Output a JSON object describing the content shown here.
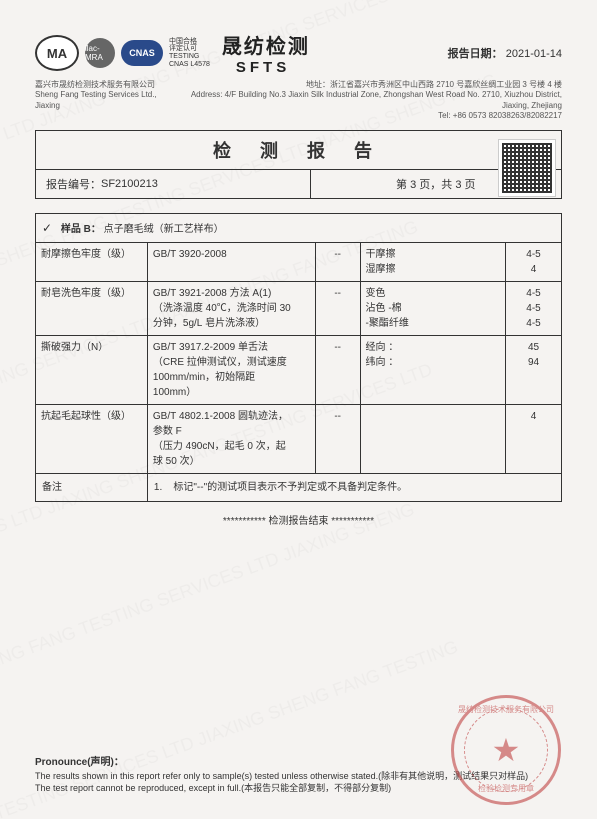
{
  "header": {
    "ma": "MA",
    "ilac": "ilac-MRA",
    "cnas": "CNAS",
    "cn_label_1": "中国合格",
    "cn_label_2": "评定认可",
    "cn_label_3": "TESTING",
    "cn_label_4": "CNAS L4578",
    "company_cn": "晟纺检测",
    "company_en": "SFTS",
    "date_label": "报告日期：",
    "date_value": "2021-01-14"
  },
  "address": {
    "left_cn": "嘉兴市晟纺检测技术服务有限公司",
    "left_en": "Sheng Fang Testing Services Ltd., Jiaxing",
    "mid": "地址：浙江省嘉兴市秀洲区中山西路 2710 号嘉欣丝绸工业园 3 号楼 4 楼",
    "mid_en": "Address: 4/F Building No.3 Jiaxin Silk Industrial Zone, Zhongshan West Road No. 2710, Xiuzhou District, Jiaxing, Zhejiang",
    "tel": "Tel: +86 0573 82038263/82082217"
  },
  "title": "检 测 报 告",
  "meta": {
    "report_no_label": "报告编号：",
    "report_no_value": "SF2100213",
    "page_info": "第 3 页，共 3 页"
  },
  "sample": {
    "check": "✓",
    "label": "样品 B：",
    "name": "点子磨毛绒（新工艺样布）"
  },
  "rows": [
    {
      "a": "耐摩擦色牢度（级）",
      "b": "GB/T 3920-2008",
      "c": "--",
      "d": "干摩擦\n湿摩擦",
      "e": "4-5\n4"
    },
    {
      "a": "耐皂洗色牢度（级）",
      "b": "GB/T 3921-2008 方法 A(1)\n（洗涤温度 40℃，洗涤时间 30\n分钟，5g/L 皂片洗涤液）",
      "c": "--",
      "d": "变色\n沾色 -棉\n-聚酯纤维",
      "e": "4-5\n4-5\n4-5"
    },
    {
      "a": "撕破强力（N）",
      "b": "GB/T 3917.2-2009 单舌法\n（CRE 拉伸测试仪，测试速度\n100mm/min，初始隔距\n100mm）",
      "c": "--",
      "d": "经向 ：\n纬向 ：",
      "e": "45\n94"
    },
    {
      "a": "抗起毛起球性（级）",
      "b": "GB/T 4802.1-2008 圆轨迹法，\n参数 F\n（压力 490cN，起毛 0 次，起\n球 50 次）",
      "c": "--",
      "d": "",
      "e": "4"
    }
  ],
  "remark": {
    "label": "备注",
    "num": "1.",
    "text": "标记\"--\"的测试项目表示不予判定或不具备判定条件。"
  },
  "end_line": "*********** 检测报告结束 ***********",
  "footer": {
    "title": "Pronounce(声明)：",
    "line1": "The results shown in this report refer only to sample(s) tested unless otherwise stated.(除非有其他说明，测试结果只对样品)",
    "line2": "The test report cannot be reproduced, except in full.(本报告只能全部复制，不得部分复制)"
  },
  "stamp": {
    "top": "晟纺检测技术服务有限公司",
    "bot": "检验检测专用章"
  }
}
